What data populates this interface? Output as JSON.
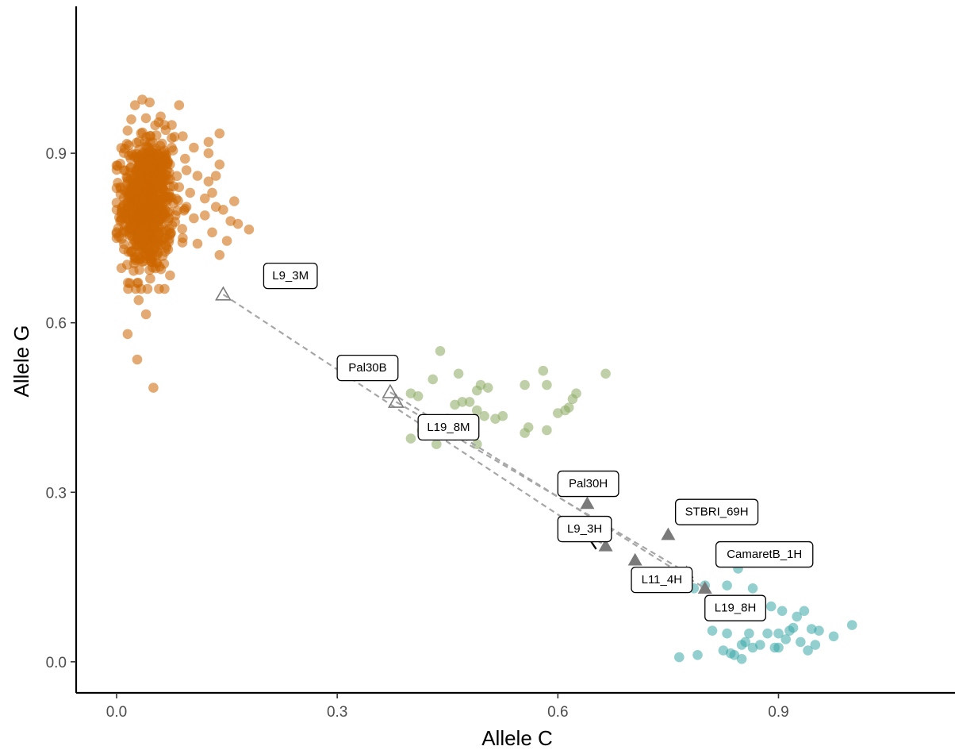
{
  "chart_data": {
    "type": "scatter",
    "xlabel": "Allele C",
    "ylabel": "Allele G",
    "xlim": [
      -0.055,
      1.14
    ],
    "ylim": [
      -0.055,
      1.16
    ],
    "x_ticks": [
      0.0,
      0.3,
      0.6,
      0.9
    ],
    "y_ticks": [
      0.0,
      0.3,
      0.6,
      0.9
    ],
    "x_tick_labels": [
      "0.0",
      "0.3",
      "0.6",
      "0.9"
    ],
    "y_tick_labels": [
      "0.0",
      "0.3",
      "0.6",
      "0.9"
    ],
    "grid": false,
    "colors": {
      "orange": "#cc6600",
      "green": "#8aaa60",
      "teal": "#3aa8a8",
      "triangle": "#7a7a7a",
      "dashed": "#a6a6a6"
    },
    "series": [
      {
        "style": "orange-cluster",
        "points": [
          [
            0.015,
            0.58
          ],
          [
            0.028,
            0.535
          ],
          [
            0.05,
            0.485
          ],
          [
            0.04,
            0.615
          ],
          [
            0.018,
            0.67
          ],
          [
            0.03,
            0.64
          ],
          [
            0.055,
            0.72
          ],
          [
            0.07,
            0.73
          ],
          [
            0.09,
            0.75
          ],
          [
            0.11,
            0.74
          ],
          [
            0.13,
            0.76
          ],
          [
            0.14,
            0.72
          ],
          [
            0.155,
            0.78
          ],
          [
            0.165,
            0.775
          ],
          [
            0.18,
            0.765
          ],
          [
            0.145,
            0.8
          ],
          [
            0.12,
            0.82
          ],
          [
            0.1,
            0.83
          ],
          [
            0.085,
            0.84
          ],
          [
            0.095,
            0.87
          ],
          [
            0.11,
            0.86
          ],
          [
            0.125,
            0.85
          ],
          [
            0.135,
            0.86
          ],
          [
            0.14,
            0.88
          ],
          [
            0.125,
            0.9
          ],
          [
            0.105,
            0.91
          ],
          [
            0.09,
            0.93
          ],
          [
            0.075,
            0.95
          ],
          [
            0.085,
            0.985
          ],
          [
            0.06,
            0.965
          ],
          [
            0.045,
            0.99
          ],
          [
            0.035,
            0.995
          ],
          [
            0.025,
            0.985
          ],
          [
            0.02,
            0.96
          ],
          [
            0.015,
            0.94
          ],
          [
            0.14,
            0.935
          ],
          [
            0.125,
            0.92
          ],
          [
            0.075,
            0.91
          ],
          [
            0.065,
            0.885
          ],
          [
            0.01,
            0.87
          ],
          [
            0.005,
            0.84
          ],
          [
            0.0,
            0.8
          ],
          [
            0.005,
            0.78
          ],
          [
            0.0,
            0.75
          ],
          [
            0.01,
            0.73
          ],
          [
            0.12,
            0.79
          ],
          [
            0.15,
            0.745
          ],
          [
            0.105,
            0.785
          ],
          [
            0.13,
            0.83
          ],
          [
            0.16,
            0.815
          ],
          [
            0.135,
            0.805
          ],
          [
            0.095,
            0.805
          ],
          [
            0.08,
            0.79
          ],
          [
            0.07,
            0.78
          ]
        ],
        "cluster_center": [
          0.042,
          0.81
        ],
        "cluster_spread": [
          0.017,
          0.06
        ]
      },
      {
        "style": "green",
        "points": [
          [
            0.4,
            0.475
          ],
          [
            0.41,
            0.47
          ],
          [
            0.43,
            0.5
          ],
          [
            0.44,
            0.55
          ],
          [
            0.465,
            0.51
          ],
          [
            0.47,
            0.46
          ],
          [
            0.46,
            0.455
          ],
          [
            0.48,
            0.46
          ],
          [
            0.49,
            0.48
          ],
          [
            0.495,
            0.49
          ],
          [
            0.505,
            0.485
          ],
          [
            0.49,
            0.445
          ],
          [
            0.5,
            0.435
          ],
          [
            0.515,
            0.43
          ],
          [
            0.525,
            0.435
          ],
          [
            0.475,
            0.425
          ],
          [
            0.485,
            0.41
          ],
          [
            0.45,
            0.43
          ],
          [
            0.44,
            0.415
          ],
          [
            0.42,
            0.43
          ],
          [
            0.415,
            0.41
          ],
          [
            0.42,
            0.4
          ],
          [
            0.4,
            0.395
          ],
          [
            0.435,
            0.385
          ],
          [
            0.46,
            0.4
          ],
          [
            0.49,
            0.385
          ],
          [
            0.555,
            0.49
          ],
          [
            0.58,
            0.515
          ],
          [
            0.585,
            0.49
          ],
          [
            0.56,
            0.415
          ],
          [
            0.555,
            0.405
          ],
          [
            0.585,
            0.41
          ],
          [
            0.6,
            0.44
          ],
          [
            0.61,
            0.445
          ],
          [
            0.615,
            0.45
          ],
          [
            0.62,
            0.465
          ],
          [
            0.625,
            0.475
          ],
          [
            0.665,
            0.51
          ]
        ]
      },
      {
        "style": "teal",
        "points": [
          [
            0.765,
            0.008
          ],
          [
            0.79,
            0.012
          ],
          [
            0.81,
            0.055
          ],
          [
            0.825,
            0.02
          ],
          [
            0.835,
            0.015
          ],
          [
            0.84,
            0.012
          ],
          [
            0.85,
            0.03
          ],
          [
            0.85,
            0.005
          ],
          [
            0.855,
            0.035
          ],
          [
            0.86,
            0.05
          ],
          [
            0.865,
            0.025
          ],
          [
            0.83,
            0.05
          ],
          [
            0.86,
            0.095
          ],
          [
            0.865,
            0.13
          ],
          [
            0.885,
            0.05
          ],
          [
            0.89,
            0.098
          ],
          [
            0.895,
            0.025
          ],
          [
            0.9,
            0.05
          ],
          [
            0.905,
            0.09
          ],
          [
            0.91,
            0.04
          ],
          [
            0.915,
            0.055
          ],
          [
            0.92,
            0.06
          ],
          [
            0.925,
            0.08
          ],
          [
            0.93,
            0.035
          ],
          [
            0.935,
            0.09
          ],
          [
            0.94,
            0.02
          ],
          [
            0.945,
            0.058
          ],
          [
            0.95,
            0.03
          ],
          [
            0.955,
            0.055
          ],
          [
            0.975,
            0.045
          ],
          [
            1.0,
            0.065
          ],
          [
            0.845,
            0.165
          ],
          [
            0.83,
            0.135
          ],
          [
            0.8,
            0.135
          ],
          [
            0.785,
            0.13
          ],
          [
            0.9,
            0.025
          ],
          [
            0.875,
            0.03
          ]
        ]
      }
    ],
    "annotations": [
      {
        "label": "L9_3M",
        "filled": false,
        "x": 0.145,
        "y": 0.65,
        "target": [
          0.665,
          0.205
        ],
        "label_pos": [
          0.2,
          0.683
        ]
      },
      {
        "label": "Pal30B",
        "filled": false,
        "x": 0.372,
        "y": 0.477,
        "target": [
          0.8,
          0.13
        ],
        "label_pos": [
          0.3,
          0.52
        ]
      },
      {
        "label": "L19_8M",
        "filled": false,
        "x": 0.38,
        "y": 0.46,
        "target": [
          0.775,
          0.158
        ],
        "label_pos": [
          0.41,
          0.415
        ]
      },
      {
        "label": "Pal30H",
        "filled": true,
        "x": 0.64,
        "y": 0.28,
        "label_pos": [
          0.6,
          0.315
        ]
      },
      {
        "label": "STBRI_69H",
        "filled": true,
        "x": 0.75,
        "y": 0.225,
        "label_pos": [
          0.76,
          0.265
        ]
      },
      {
        "label": "L9_3H",
        "filled": true,
        "x": 0.665,
        "y": 0.205,
        "label_pos": [
          0.6,
          0.235
        ]
      },
      {
        "label": "L11_4H",
        "filled": true,
        "x": 0.705,
        "y": 0.18,
        "label_pos": [
          0.7,
          0.145
        ]
      },
      {
        "label": "CamaretB_1H",
        "filled": true,
        "x": 0.775,
        "y": 0.158,
        "label_pos": [
          0.815,
          0.19
        ]
      },
      {
        "label": "L19_8H",
        "filled": true,
        "x": 0.8,
        "y": 0.13,
        "label_pos": [
          0.8,
          0.095
        ]
      }
    ]
  }
}
